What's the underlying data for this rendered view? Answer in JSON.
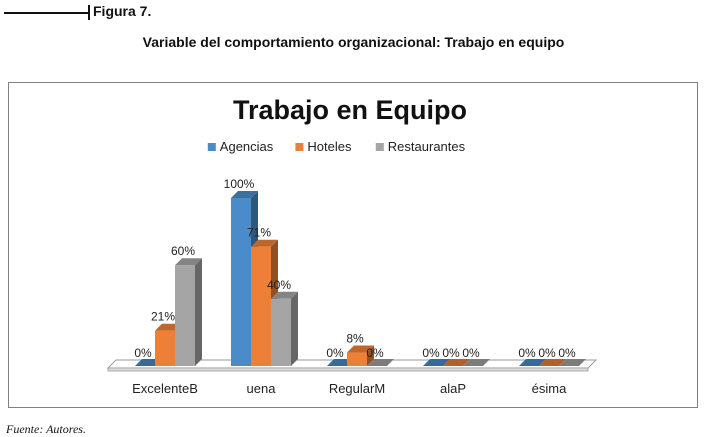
{
  "figure": {
    "label": "Figura 7.",
    "caption": "Variable del comportamiento organizacional: Trabajo en equipo",
    "source": "Fuente: Autores."
  },
  "chart_data": {
    "type": "bar",
    "title": "Trabajo en Equipo",
    "categories": [
      "ExcelenteB",
      "uena",
      "RegularM",
      "alaP",
      "ésima"
    ],
    "series": [
      {
        "name": "Agencias",
        "color": "#4a8cc9",
        "values": [
          0,
          100,
          0,
          0,
          0
        ],
        "labels": [
          "0%",
          "100%",
          "0%",
          "0%",
          "0%"
        ]
      },
      {
        "name": "Hoteles",
        "color": "#ee7f36",
        "values": [
          21,
          71,
          8,
          0,
          0
        ],
        "labels": [
          "21%",
          "71%",
          "8%",
          "0%",
          "0%"
        ]
      },
      {
        "name": "Restaurantes",
        "color": "#a5a5a5",
        "values": [
          60,
          40,
          0,
          0,
          0
        ],
        "labels": [
          "60%",
          "40%",
          "0%",
          "0%",
          "0%"
        ]
      }
    ],
    "ylim": [
      0,
      100
    ],
    "grid": false,
    "legend_position": "top",
    "three_d": true
  }
}
